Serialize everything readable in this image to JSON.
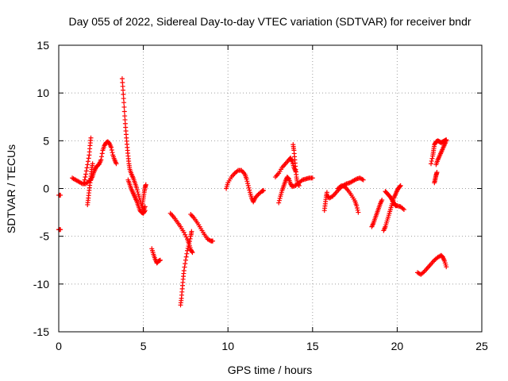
{
  "chart_data": {
    "type": "scatter",
    "title": "Day 055 of 2022, Sidereal Day-to-day VTEC variation (SDTVAR) for receiver bndr",
    "xlabel": "GPS time / hours",
    "ylabel": "SDTVAR / TECUs",
    "xlim": [
      0,
      25
    ],
    "ylim": [
      -15,
      15
    ],
    "xticks": [
      0,
      5,
      10,
      15,
      20,
      25
    ],
    "yticks": [
      -15,
      -10,
      -5,
      0,
      5,
      10,
      15
    ],
    "xtick_labels": [
      "0",
      "5",
      "10",
      "15",
      "20",
      "25"
    ],
    "ytick_labels": [
      "-15",
      "-10",
      "-5",
      "0",
      "5",
      "10",
      "15"
    ],
    "grid": true,
    "marker": "+",
    "color": "#ff0000",
    "series": [
      {
        "name": "s01",
        "points": [
          [
            0.0,
            -0.7
          ],
          [
            0.1,
            -0.7
          ]
        ]
      },
      {
        "name": "s02",
        "points": [
          [
            0.0,
            -4.3
          ],
          [
            0.1,
            -4.3
          ]
        ]
      },
      {
        "name": "s03",
        "points": [
          [
            0.8,
            1.1
          ],
          [
            1.0,
            0.9
          ],
          [
            1.2,
            0.7
          ],
          [
            1.4,
            0.5
          ],
          [
            1.6,
            0.5
          ],
          [
            1.8,
            0.8
          ]
        ]
      },
      {
        "name": "s04",
        "points": [
          [
            1.5,
            0.6
          ],
          [
            1.6,
            1.5
          ],
          [
            1.7,
            2.5
          ],
          [
            1.8,
            3.5
          ],
          [
            1.85,
            4.5
          ],
          [
            1.9,
            5.3
          ]
        ]
      },
      {
        "name": "s05",
        "points": [
          [
            1.7,
            -1.7
          ],
          [
            1.75,
            -1.0
          ],
          [
            1.8,
            -0.2
          ],
          [
            1.85,
            0.6
          ],
          [
            1.9,
            1.3
          ],
          [
            1.95,
            2.0
          ],
          [
            2.0,
            2.6
          ]
        ]
      },
      {
        "name": "s06",
        "points": [
          [
            1.9,
            0.9
          ],
          [
            2.0,
            1.3
          ],
          [
            2.1,
            1.8
          ],
          [
            2.2,
            2.2
          ],
          [
            2.3,
            2.4
          ],
          [
            2.4,
            2.6
          ],
          [
            2.5,
            3.0
          ],
          [
            2.6,
            4.0
          ],
          [
            2.7,
            4.5
          ],
          [
            2.8,
            4.8
          ],
          [
            2.9,
            4.9
          ],
          [
            3.0,
            4.7
          ],
          [
            3.1,
            4.3
          ],
          [
            3.2,
            3.5
          ],
          [
            3.3,
            3.0
          ],
          [
            3.4,
            2.6
          ]
        ]
      },
      {
        "name": "s07",
        "points": [
          [
            3.75,
            11.5
          ],
          [
            3.8,
            10.3
          ],
          [
            3.85,
            9.0
          ],
          [
            3.9,
            7.6
          ],
          [
            3.95,
            6.4
          ],
          [
            4.0,
            5.3
          ],
          [
            4.05,
            4.3
          ],
          [
            4.1,
            3.4
          ],
          [
            4.15,
            2.6
          ],
          [
            4.2,
            2.0
          ],
          [
            4.3,
            1.5
          ],
          [
            4.4,
            1.1
          ],
          [
            4.5,
            0.6
          ],
          [
            4.6,
            0.1
          ],
          [
            4.7,
            -0.6
          ],
          [
            4.8,
            -1.2
          ],
          [
            4.9,
            -1.8
          ],
          [
            5.0,
            -2.3
          ],
          [
            5.1,
            -1.9
          ]
        ]
      },
      {
        "name": "s08",
        "points": [
          [
            4.1,
            0.9
          ],
          [
            4.2,
            0.4
          ],
          [
            4.3,
            -0.1
          ],
          [
            4.4,
            -0.5
          ],
          [
            4.5,
            -0.9
          ],
          [
            4.6,
            -1.3
          ],
          [
            4.7,
            -1.8
          ],
          [
            4.8,
            -2.3
          ],
          [
            4.9,
            -2.5
          ],
          [
            5.0,
            -2.6
          ],
          [
            5.1,
            -2.3
          ]
        ]
      },
      {
        "name": "s09",
        "points": [
          [
            4.95,
            -1.6
          ],
          [
            5.0,
            -1.0
          ],
          [
            5.05,
            -0.4
          ],
          [
            5.1,
            0.1
          ],
          [
            5.15,
            0.4
          ]
        ]
      },
      {
        "name": "s10",
        "points": [
          [
            5.5,
            -6.3
          ],
          [
            5.6,
            -6.9
          ],
          [
            5.7,
            -7.4
          ],
          [
            5.8,
            -7.8
          ],
          [
            5.9,
            -7.6
          ],
          [
            6.0,
            -7.5
          ]
        ]
      },
      {
        "name": "s11",
        "points": [
          [
            6.6,
            -2.6
          ],
          [
            6.8,
            -3.0
          ],
          [
            7.0,
            -3.5
          ],
          [
            7.2,
            -4.0
          ],
          [
            7.4,
            -4.6
          ],
          [
            7.6,
            -5.3
          ],
          [
            7.7,
            -5.8
          ],
          [
            7.8,
            -6.4
          ],
          [
            7.9,
            -6.7
          ]
        ]
      },
      {
        "name": "s12",
        "points": [
          [
            7.2,
            -12.2
          ],
          [
            7.25,
            -11.5
          ],
          [
            7.3,
            -10.5
          ],
          [
            7.35,
            -9.5
          ],
          [
            7.4,
            -8.6
          ],
          [
            7.5,
            -7.5
          ],
          [
            7.6,
            -6.5
          ],
          [
            7.7,
            -5.8
          ],
          [
            7.8,
            -5.0
          ],
          [
            7.85,
            -4.5
          ]
        ]
      },
      {
        "name": "s13",
        "points": [
          [
            7.8,
            -2.7
          ],
          [
            8.0,
            -3.1
          ],
          [
            8.2,
            -3.6
          ],
          [
            8.4,
            -4.2
          ],
          [
            8.6,
            -4.8
          ],
          [
            8.8,
            -5.3
          ],
          [
            9.0,
            -5.5
          ],
          [
            9.1,
            -5.5
          ]
        ]
      },
      {
        "name": "s14",
        "points": [
          [
            9.9,
            0.0
          ],
          [
            10.0,
            0.6
          ],
          [
            10.2,
            1.2
          ],
          [
            10.4,
            1.6
          ],
          [
            10.6,
            1.9
          ],
          [
            10.8,
            1.9
          ],
          [
            11.0,
            1.5
          ],
          [
            11.1,
            1.0
          ],
          [
            11.2,
            0.3
          ],
          [
            11.3,
            -0.4
          ],
          [
            11.4,
            -1.0
          ],
          [
            11.5,
            -1.4
          ],
          [
            11.6,
            -1.0
          ],
          [
            11.8,
            -0.6
          ],
          [
            12.0,
            -0.3
          ],
          [
            12.1,
            -0.2
          ]
        ]
      },
      {
        "name": "s15",
        "points": [
          [
            12.8,
            1.2
          ],
          [
            13.0,
            1.6
          ],
          [
            13.2,
            2.2
          ],
          [
            13.4,
            2.6
          ],
          [
            13.6,
            3.0
          ],
          [
            13.7,
            3.2
          ],
          [
            13.8,
            2.8
          ],
          [
            13.9,
            2.2
          ],
          [
            14.0,
            1.8
          ]
        ]
      },
      {
        "name": "s16",
        "points": [
          [
            13.0,
            -1.5
          ],
          [
            13.1,
            -0.8
          ],
          [
            13.2,
            -0.2
          ],
          [
            13.3,
            0.3
          ],
          [
            13.4,
            0.8
          ],
          [
            13.5,
            1.2
          ],
          [
            13.6,
            1.0
          ],
          [
            13.7,
            0.5
          ],
          [
            13.8,
            0.2
          ],
          [
            14.0,
            0.3
          ],
          [
            14.2,
            0.6
          ],
          [
            14.4,
            0.9
          ],
          [
            14.6,
            1.0
          ],
          [
            14.8,
            1.1
          ],
          [
            15.0,
            1.1
          ]
        ]
      },
      {
        "name": "s17",
        "points": [
          [
            13.85,
            4.6
          ],
          [
            13.9,
            4.0
          ],
          [
            13.95,
            3.0
          ],
          [
            14.0,
            2.0
          ],
          [
            14.05,
            1.2
          ],
          [
            14.1,
            0.6
          ],
          [
            14.2,
            0.3
          ]
        ]
      },
      {
        "name": "s18",
        "points": [
          [
            15.7,
            -2.3
          ],
          [
            15.75,
            -1.6
          ],
          [
            15.8,
            -0.9
          ],
          [
            15.85,
            -0.4
          ]
        ]
      },
      {
        "name": "s19",
        "points": [
          [
            15.9,
            -0.8
          ],
          [
            16.0,
            -1.0
          ],
          [
            16.2,
            -0.8
          ],
          [
            16.4,
            -0.4
          ],
          [
            16.6,
            0.0
          ],
          [
            16.8,
            0.3
          ],
          [
            17.0,
            0.5
          ],
          [
            17.2,
            0.6
          ],
          [
            17.4,
            0.8
          ],
          [
            17.6,
            1.0
          ],
          [
            17.8,
            1.1
          ],
          [
            18.0,
            0.9
          ]
        ]
      },
      {
        "name": "s20",
        "points": [
          [
            16.5,
            0.0
          ],
          [
            16.7,
            0.3
          ],
          [
            16.9,
            0.2
          ],
          [
            17.1,
            -0.2
          ],
          [
            17.3,
            -0.7
          ],
          [
            17.5,
            -1.3
          ],
          [
            17.6,
            -1.8
          ],
          [
            17.7,
            -2.5
          ]
        ]
      },
      {
        "name": "s21",
        "points": [
          [
            18.5,
            -4.0
          ],
          [
            18.6,
            -3.6
          ],
          [
            18.7,
            -3.1
          ],
          [
            18.8,
            -2.6
          ],
          [
            18.9,
            -2.1
          ],
          [
            19.0,
            -1.6
          ],
          [
            19.1,
            -1.2
          ]
        ]
      },
      {
        "name": "s22",
        "points": [
          [
            19.2,
            -4.4
          ],
          [
            19.3,
            -4.0
          ],
          [
            19.4,
            -3.4
          ],
          [
            19.5,
            -2.8
          ],
          [
            19.6,
            -2.2
          ],
          [
            19.7,
            -1.6
          ],
          [
            19.8,
            -1.0
          ],
          [
            19.9,
            -0.6
          ],
          [
            20.0,
            -0.2
          ],
          [
            20.1,
            0.1
          ],
          [
            20.2,
            0.3
          ]
        ]
      },
      {
        "name": "s23",
        "points": [
          [
            19.3,
            -0.3
          ],
          [
            19.4,
            -0.5
          ],
          [
            19.5,
            -0.7
          ],
          [
            19.6,
            -0.9
          ],
          [
            19.7,
            -1.2
          ],
          [
            19.8,
            -1.5
          ],
          [
            19.9,
            -1.8
          ],
          [
            20.0,
            -1.8
          ],
          [
            20.2,
            -1.9
          ],
          [
            20.4,
            -2.2
          ]
        ]
      },
      {
        "name": "s24",
        "points": [
          [
            21.2,
            -8.8
          ],
          [
            21.4,
            -9.0
          ],
          [
            21.6,
            -8.7
          ],
          [
            21.8,
            -8.3
          ],
          [
            22.0,
            -7.9
          ],
          [
            22.2,
            -7.5
          ],
          [
            22.4,
            -7.2
          ],
          [
            22.6,
            -7.0
          ],
          [
            22.7,
            -7.2
          ],
          [
            22.8,
            -7.6
          ],
          [
            22.9,
            -8.2
          ]
        ]
      },
      {
        "name": "s25",
        "points": [
          [
            22.2,
            0.6
          ],
          [
            22.25,
            1.0
          ],
          [
            22.3,
            1.4
          ],
          [
            22.35,
            1.7
          ]
        ]
      },
      {
        "name": "s26",
        "points": [
          [
            22.0,
            2.6
          ],
          [
            22.1,
            3.4
          ],
          [
            22.15,
            4.0
          ],
          [
            22.2,
            4.6
          ],
          [
            22.3,
            4.9
          ],
          [
            22.4,
            5.0
          ],
          [
            22.5,
            4.9
          ],
          [
            22.6,
            4.8
          ],
          [
            22.7,
            4.9
          ],
          [
            22.8,
            5.0
          ],
          [
            22.9,
            5.1
          ]
        ]
      },
      {
        "name": "s27",
        "points": [
          [
            22.3,
            2.5
          ],
          [
            22.4,
            3.0
          ],
          [
            22.5,
            3.4
          ],
          [
            22.6,
            3.8
          ],
          [
            22.7,
            4.2
          ],
          [
            22.8,
            4.6
          ],
          [
            22.9,
            5.0
          ]
        ]
      }
    ]
  }
}
